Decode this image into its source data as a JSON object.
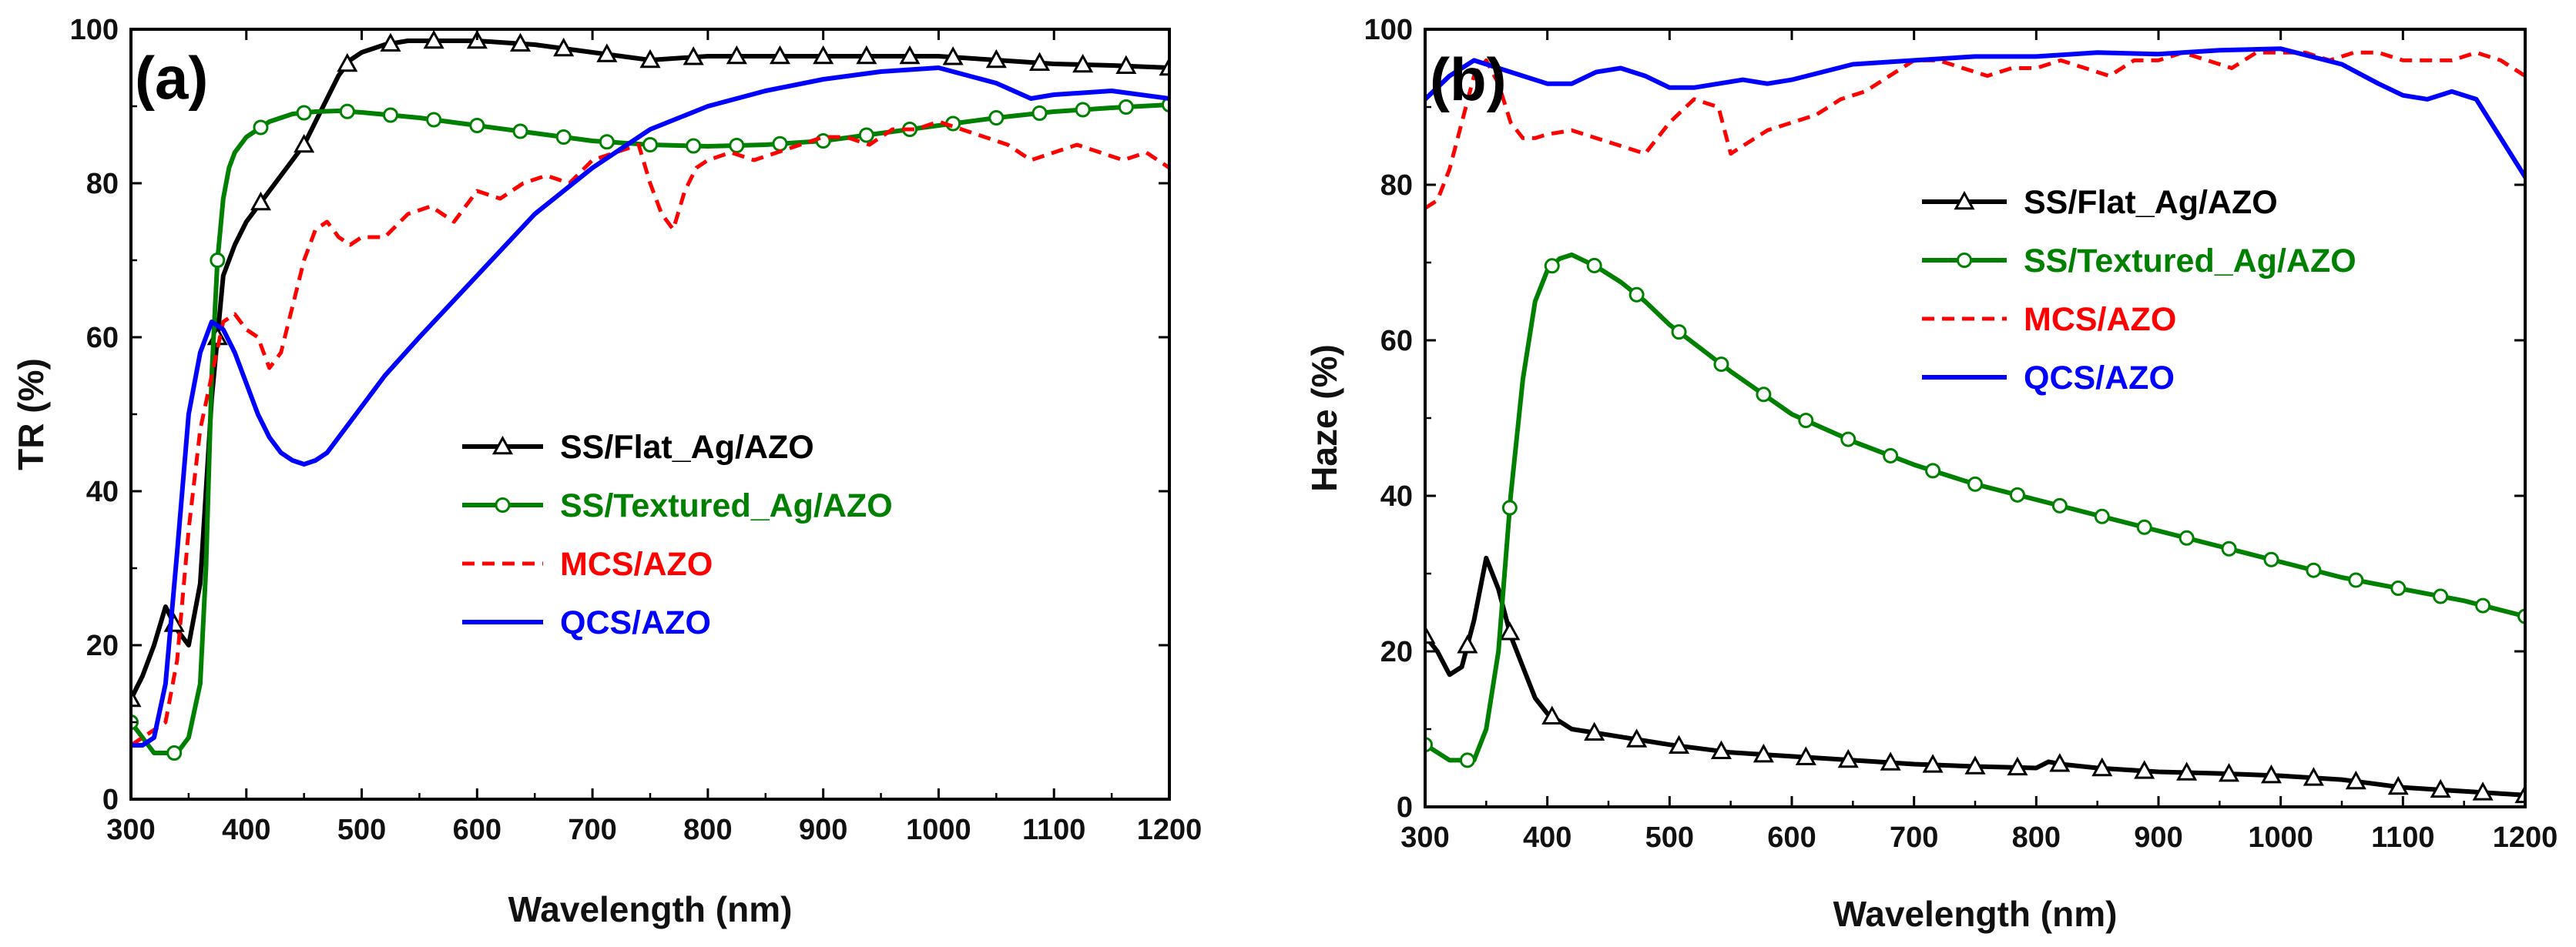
{
  "figure_title": "",
  "chart_data": [
    {
      "type": "line",
      "panel_label": "(a)",
      "xlabel": "Wavelength (nm)",
      "ylabel": "TR (%)",
      "xlim": [
        300,
        1200
      ],
      "ylim": [
        0,
        100
      ],
      "xticks": [
        "300",
        "400",
        "500",
        "600",
        "700",
        "800",
        "900",
        "1000",
        "1100",
        "1200"
      ],
      "yticks": [
        "0",
        "20",
        "40",
        "60",
        "80",
        "100"
      ],
      "legend_position": "center-right",
      "series": [
        {
          "name": "SS/Flat_Ag/AZO",
          "color": "#000000",
          "dash": "solid",
          "marker": "triangle",
          "x": [
            300,
            310,
            320,
            330,
            340,
            350,
            360,
            370,
            380,
            390,
            400,
            410,
            420,
            430,
            440,
            450,
            460,
            470,
            480,
            490,
            500,
            520,
            540,
            560,
            580,
            600,
            620,
            650,
            700,
            750,
            800,
            850,
            900,
            950,
            1000,
            1050,
            1100,
            1150,
            1200
          ],
          "y": [
            13,
            16,
            20,
            25,
            22,
            20,
            28,
            52,
            68,
            72,
            75,
            77,
            79,
            81,
            83,
            85,
            88,
            91,
            94,
            96,
            97,
            98,
            98.5,
            98.5,
            98.5,
            98.5,
            98.3,
            98,
            97,
            96,
            96.5,
            96.5,
            96.5,
            96.5,
            96.5,
            96,
            95.5,
            95.3,
            95
          ]
        },
        {
          "name": "SS/Textured_Ag/AZO",
          "color": "#008000",
          "dash": "solid",
          "marker": "circle",
          "x": [
            300,
            320,
            340,
            350,
            360,
            365,
            370,
            375,
            380,
            385,
            390,
            400,
            410,
            420,
            440,
            460,
            480,
            500,
            550,
            600,
            650,
            700,
            750,
            800,
            850,
            900,
            950,
            1000,
            1050,
            1100,
            1150,
            1200
          ],
          "y": [
            10,
            6,
            6,
            8,
            15,
            30,
            55,
            70,
            78,
            82,
            84,
            86,
            87,
            88,
            89,
            89.3,
            89.4,
            89.2,
            88.5,
            87.5,
            86.5,
            85.5,
            85,
            84.8,
            85,
            85.5,
            86.5,
            87.5,
            88.5,
            89.3,
            89.8,
            90.2
          ]
        },
        {
          "name": "MCS/AZO",
          "color": "#ff0000",
          "dash": "dashed",
          "marker": "none",
          "x": [
            300,
            310,
            320,
            330,
            340,
            350,
            360,
            370,
            380,
            390,
            400,
            410,
            420,
            430,
            440,
            450,
            460,
            470,
            480,
            490,
            500,
            510,
            520,
            540,
            560,
            580,
            600,
            620,
            640,
            660,
            680,
            700,
            720,
            740,
            750,
            760,
            770,
            780,
            790,
            800,
            820,
            840,
            860,
            880,
            900,
            920,
            940,
            960,
            980,
            1000,
            1020,
            1040,
            1060,
            1080,
            1100,
            1120,
            1140,
            1160,
            1180,
            1200
          ],
          "y": [
            7,
            8,
            9,
            10,
            18,
            35,
            48,
            55,
            62,
            63,
            61,
            60,
            56,
            58,
            64,
            70,
            74,
            75,
            73,
            72,
            73,
            73,
            73,
            76,
            77,
            75,
            79,
            78,
            80,
            81,
            80,
            83,
            84,
            85,
            80,
            76,
            74,
            79,
            82,
            83,
            84,
            83,
            84,
            85,
            86,
            86,
            85,
            87,
            87,
            88,
            87,
            86,
            85,
            83,
            84,
            85,
            84,
            83,
            84,
            82
          ]
        },
        {
          "name": "QCS/AZO",
          "color": "#0000ff",
          "dash": "solid",
          "marker": "none",
          "x": [
            300,
            310,
            320,
            330,
            340,
            350,
            360,
            370,
            380,
            390,
            400,
            410,
            420,
            430,
            440,
            450,
            460,
            470,
            480,
            500,
            520,
            550,
            600,
            650,
            700,
            750,
            800,
            850,
            900,
            950,
            1000,
            1050,
            1080,
            1100,
            1150,
            1200
          ],
          "y": [
            7,
            7,
            8,
            15,
            32,
            50,
            58,
            62,
            61,
            58,
            54,
            50,
            47,
            45,
            44,
            43.5,
            44,
            45,
            47,
            51,
            55,
            60,
            68,
            76,
            82,
            87,
            90,
            92,
            93.5,
            94.5,
            95,
            93,
            91,
            91.5,
            92,
            91
          ]
        }
      ]
    },
    {
      "type": "line",
      "panel_label": "(b)",
      "xlabel": "Wavelength (nm)",
      "ylabel": "Haze (%)",
      "xlim": [
        300,
        1200
      ],
      "ylim": [
        0,
        100
      ],
      "xticks": [
        "300",
        "400",
        "500",
        "600",
        "700",
        "800",
        "900",
        "1000",
        "1100",
        "1200"
      ],
      "yticks": [
        "0",
        "20",
        "40",
        "60",
        "80",
        "100"
      ],
      "legend_position": "top-right",
      "series": [
        {
          "name": "SS/Flat_Ag/AZO",
          "color": "#000000",
          "dash": "solid",
          "marker": "triangle",
          "x": [
            300,
            310,
            320,
            330,
            340,
            350,
            360,
            370,
            380,
            390,
            400,
            410,
            420,
            440,
            460,
            480,
            500,
            550,
            600,
            650,
            700,
            750,
            800,
            810,
            820,
            850,
            900,
            950,
            1000,
            1050,
            1100,
            1150,
            1200
          ],
          "y": [
            22,
            20,
            17,
            18,
            24,
            32,
            28,
            22,
            18,
            14,
            12,
            11,
            10,
            9.5,
            9,
            8.5,
            8,
            7,
            6.5,
            6,
            5.5,
            5.2,
            5,
            5.8,
            5.5,
            5,
            4.5,
            4.3,
            4,
            3.5,
            2.5,
            2,
            1.5
          ]
        },
        {
          "name": "SS/Textured_Ag/AZO",
          "color": "#008000",
          "dash": "solid",
          "marker": "circle",
          "x": [
            300,
            320,
            340,
            350,
            360,
            370,
            380,
            390,
            400,
            410,
            420,
            440,
            460,
            480,
            500,
            550,
            600,
            650,
            700,
            750,
            800,
            850,
            900,
            950,
            1000,
            1050,
            1100,
            1150,
            1200
          ],
          "y": [
            8,
            6,
            6,
            10,
            20,
            40,
            55,
            65,
            69,
            70.5,
            71,
            69.5,
            67.5,
            65,
            62,
            56,
            50.5,
            47,
            44,
            41.5,
            39.5,
            37.5,
            35.5,
            33.5,
            31.5,
            29.5,
            28,
            26.5,
            24.5
          ]
        },
        {
          "name": "MCS/AZO",
          "color": "#ff0000",
          "dash": "dashed",
          "marker": "none",
          "x": [
            300,
            310,
            320,
            330,
            340,
            350,
            360,
            370,
            380,
            390,
            400,
            420,
            440,
            460,
            480,
            490,
            500,
            520,
            540,
            550,
            560,
            580,
            600,
            620,
            640,
            660,
            680,
            700,
            720,
            740,
            760,
            780,
            800,
            820,
            840,
            860,
            880,
            900,
            920,
            940,
            960,
            980,
            1000,
            1020,
            1040,
            1060,
            1080,
            1100,
            1120,
            1140,
            1160,
            1180,
            1200
          ],
          "y": [
            77,
            78,
            82,
            88,
            94,
            96,
            93,
            88,
            86,
            86,
            86.5,
            87,
            86,
            85,
            84,
            86,
            88,
            91,
            90,
            84,
            85,
            87,
            88,
            89,
            91,
            92,
            94,
            96,
            96,
            95,
            94,
            95,
            95,
            96,
            95,
            94,
            96,
            96,
            97,
            96,
            95,
            97,
            97,
            97,
            96,
            97,
            97,
            96,
            96,
            96,
            97,
            96,
            94
          ]
        },
        {
          "name": "QCS/AZO",
          "color": "#0000ff",
          "dash": "solid",
          "marker": "none",
          "x": [
            300,
            320,
            340,
            360,
            380,
            400,
            420,
            440,
            460,
            480,
            500,
            520,
            540,
            560,
            580,
            600,
            650,
            700,
            750,
            800,
            850,
            900,
            950,
            1000,
            1050,
            1080,
            1100,
            1120,
            1140,
            1160,
            1180,
            1200
          ],
          "y": [
            91,
            94,
            96,
            95,
            94,
            93,
            93,
            94.5,
            95,
            94,
            92.5,
            92.5,
            93,
            93.5,
            93,
            93.5,
            95.5,
            96,
            96.5,
            96.5,
            97,
            96.8,
            97.3,
            97.5,
            95.5,
            93,
            91.5,
            91,
            92,
            91,
            86,
            81
          ]
        }
      ]
    }
  ]
}
